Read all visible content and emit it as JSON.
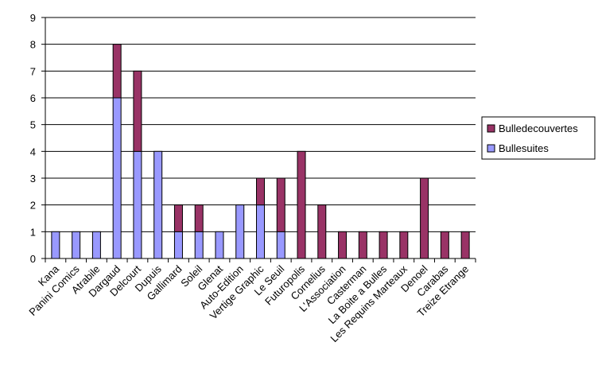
{
  "chart_data": {
    "type": "bar",
    "stacked": true,
    "categories": [
      "Kana",
      "Panini Comics",
      "Atrabile",
      "Dargaud",
      "Delcourt",
      "Dupuis",
      "Gallimard",
      "Soleil",
      "Glenat",
      "Auto-Edition",
      "Vertige Graphic",
      "Le Seuil",
      "Futuropolis",
      "Cornelius",
      "L'Association",
      "Casterman",
      "La Boite a Bulles",
      "Les Requins Marteaux",
      "Denoel",
      "Carabas",
      "Treize Etrange"
    ],
    "series": [
      {
        "name": "Bullesuites",
        "color": "#9999ff",
        "values": [
          1,
          1,
          1,
          6,
          4,
          4,
          1,
          1,
          1,
          2,
          2,
          1,
          0,
          0,
          0,
          0,
          0,
          0,
          0,
          0,
          0
        ]
      },
      {
        "name": "Bulledecouvertes",
        "color": "#993366",
        "values": [
          0,
          0,
          0,
          2,
          3,
          0,
          1,
          1,
          0,
          0,
          1,
          2,
          4,
          2,
          1,
          1,
          1,
          1,
          3,
          1,
          1
        ]
      }
    ],
    "ylim": [
      0,
      9
    ],
    "yticks": [
      "0",
      "1",
      "2",
      "3",
      "4",
      "5",
      "6",
      "7",
      "8",
      "9"
    ],
    "grid": true,
    "legend_position": "right",
    "xlabel": "",
    "ylabel": "",
    "title": ""
  },
  "legend": {
    "items": [
      {
        "label": "Bulledecouvertes",
        "color": "#993366"
      },
      {
        "label": "Bullesuites",
        "color": "#9999ff"
      }
    ]
  }
}
